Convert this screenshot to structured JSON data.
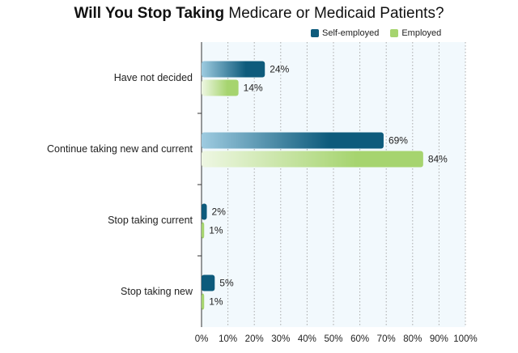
{
  "title": {
    "bold_part": "Will You Stop Taking",
    "regular_part": "Medicare or Medicaid Patients?"
  },
  "colors": {
    "self_employed": "#0e5b7c",
    "self_employed_light": "#9ecbe0",
    "employed": "#a6d46f",
    "employed_light": "#eef7e3",
    "plot_bg": "#f2f9fd",
    "grid": "#a9a9a9"
  },
  "chart_data": {
    "type": "bar",
    "orientation": "horizontal",
    "title": "Will You Stop Taking Medicare or Medicaid Patients?",
    "categories": [
      "Have not decided",
      "Continue taking new and current",
      "Stop taking current",
      "Stop taking new"
    ],
    "series": [
      {
        "name": "Self-employed",
        "values": [
          24,
          69,
          2,
          5
        ],
        "labels": [
          "24%",
          "69%",
          "2%",
          "5%"
        ]
      },
      {
        "name": "Employed",
        "values": [
          14,
          84,
          1,
          1
        ],
        "labels": [
          "14%",
          "84%",
          "1%",
          "1%"
        ]
      }
    ],
    "xlim": [
      0,
      100
    ],
    "x_ticks": [
      "0%",
      "10%",
      "20%",
      "30%",
      "40%",
      "50%",
      "60%",
      "70%",
      "80%",
      "90%",
      "100%"
    ],
    "grid": true,
    "legend": "top-right"
  }
}
